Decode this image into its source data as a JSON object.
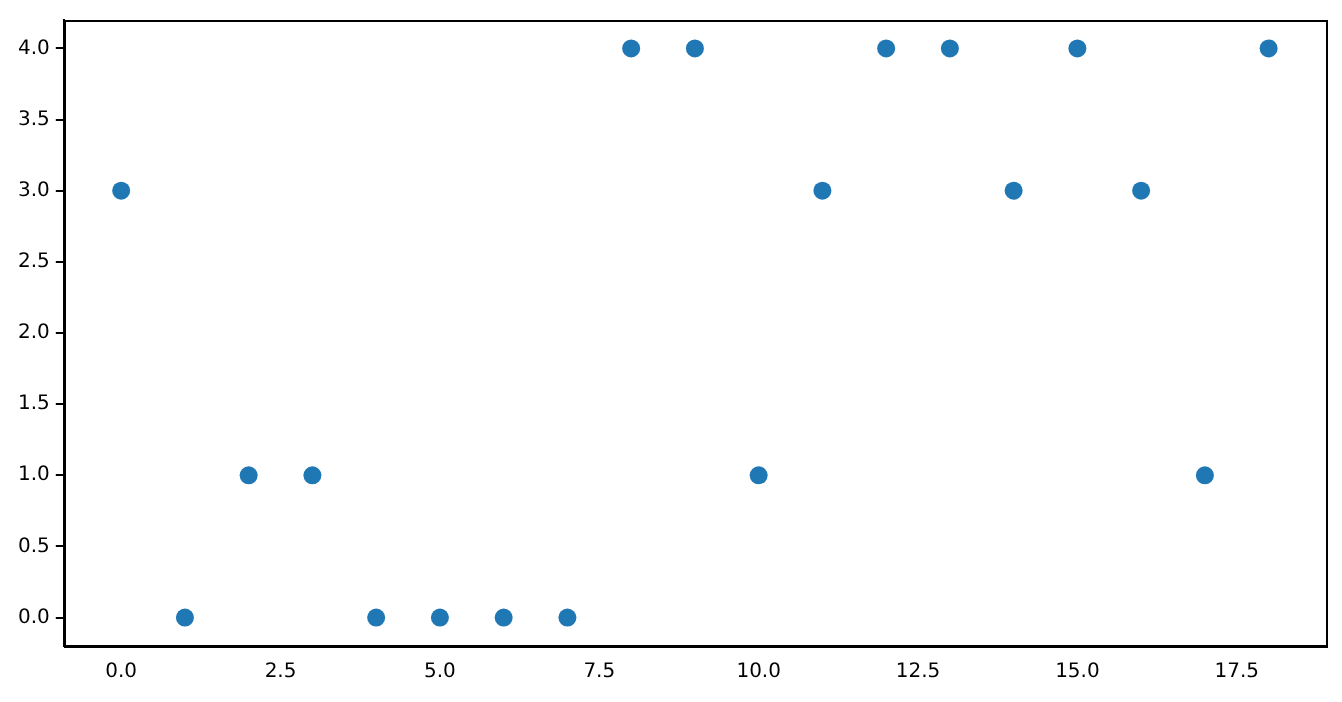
{
  "chart_data": {
    "type": "scatter",
    "x": [
      0,
      1,
      2,
      3,
      4,
      5,
      6,
      7,
      8,
      9,
      10,
      11,
      12,
      13,
      14,
      15,
      16,
      17,
      18
    ],
    "series": [
      {
        "color": "#1f77b4",
        "values": [
          3,
          0,
          1,
          1,
          0,
          0,
          0,
          0,
          4,
          4,
          1,
          3,
          4,
          4,
          3,
          4,
          3,
          1,
          4
        ]
      }
    ],
    "xlim": [
      -0.9,
      18.9
    ],
    "xticks": [
      {
        "value": 0,
        "label": "0.0"
      },
      {
        "value": 2.5,
        "label": "2.5"
      },
      {
        "value": 5,
        "label": "5.0"
      },
      {
        "value": 7.5,
        "label": "7.5"
      },
      {
        "value": 10,
        "label": "10.0"
      },
      {
        "value": 12.5,
        "label": "12.5"
      },
      {
        "value": 15,
        "label": "15.0"
      },
      {
        "value": 17.5,
        "label": "17.5"
      }
    ],
    "ylim": [
      -0.2,
      4.2
    ],
    "yticks": [
      {
        "value": 0,
        "label": "0.0"
      },
      {
        "value": 0.5,
        "label": "0.5"
      },
      {
        "value": 1,
        "label": "1.0"
      },
      {
        "value": 1.5,
        "label": "1.5"
      },
      {
        "value": 2,
        "label": "2.0"
      },
      {
        "value": 2.5,
        "label": "2.5"
      },
      {
        "value": 3,
        "label": "3.0"
      },
      {
        "value": 3.5,
        "label": "3.5"
      },
      {
        "value": 4,
        "label": "4.0"
      }
    ],
    "grid": false,
    "legend": false,
    "marker": "circle"
  }
}
